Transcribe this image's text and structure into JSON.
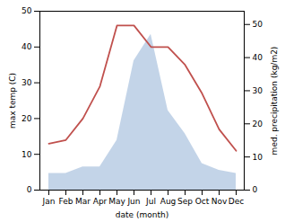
{
  "chart_data": {
    "type": "line",
    "xlabel": "date (month)",
    "ylabel": "max temp (C)",
    "y2label": "med. precipitation (kg/m2)",
    "categories": [
      "Jan",
      "Feb",
      "Mar",
      "Apr",
      "May",
      "Jun",
      "Jul",
      "Aug",
      "Sep",
      "Oct",
      "Nov",
      "Dec"
    ],
    "series": [
      {
        "type": "area",
        "axis": "y2",
        "color": "#b8cce4",
        "values": [
          5,
          5,
          7,
          7,
          15,
          39,
          47,
          24,
          17,
          8,
          6,
          5
        ]
      },
      {
        "type": "line",
        "color": "#c0504d",
        "values": [
          13,
          14,
          20,
          29,
          46,
          46,
          40,
          40,
          35,
          27,
          17,
          11
        ]
      }
    ],
    "ylim": [
      0,
      50
    ],
    "yticks": [
      0,
      10,
      20,
      30,
      40,
      50
    ],
    "y2lim": [
      0,
      54
    ],
    "y2ticks": [
      0,
      10,
      20,
      30,
      40,
      50
    ]
  }
}
